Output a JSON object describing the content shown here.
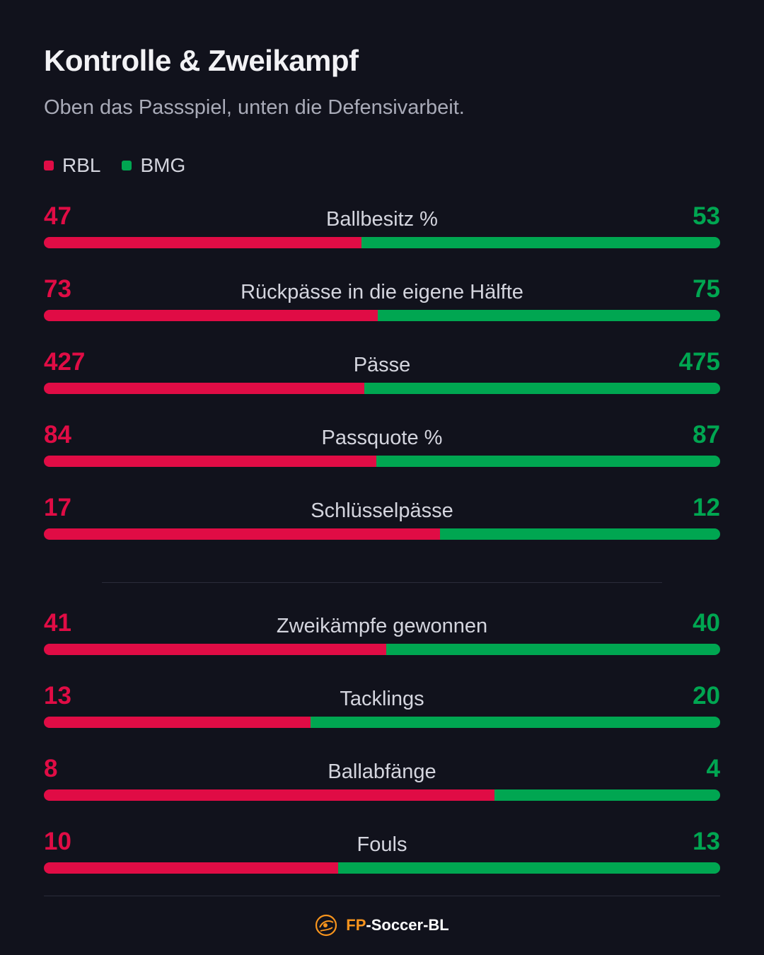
{
  "header": {
    "title": "Kontrolle & Zweikampf",
    "subtitle": "Oben das Passspiel, unten die Defensivarbeit."
  },
  "colors": {
    "home": "#e00c45",
    "away": "#00a651",
    "brand_accent": "#f7941d"
  },
  "legend": {
    "home_label": "RBL",
    "away_label": "BMG"
  },
  "chart_data": {
    "type": "bar",
    "orientation": "horizontal-stacked-share",
    "series": [
      {
        "name": "RBL",
        "values": [
          47,
          73,
          427,
          84,
          17,
          41,
          13,
          8,
          10
        ]
      },
      {
        "name": "BMG",
        "values": [
          53,
          75,
          475,
          87,
          12,
          40,
          20,
          4,
          13
        ]
      }
    ],
    "categories": [
      "Ballbesitz %",
      "Rückpässe in die eigene Hälfte",
      "Pässe",
      "Passquote %",
      "Schlüsselpässe",
      "Zweikämpfe gewonnen",
      "Tacklings",
      "Ballabfänge",
      "Fouls"
    ],
    "groups": [
      {
        "name": "passing",
        "rows": [
          0,
          1,
          2,
          3,
          4
        ]
      },
      {
        "name": "defense",
        "rows": [
          5,
          6,
          7,
          8
        ]
      }
    ]
  },
  "footer": {
    "brand_prefix": "FP",
    "brand_suffix": "-Soccer-BL",
    "logo_icon": "soccer-ball-logo-icon"
  }
}
